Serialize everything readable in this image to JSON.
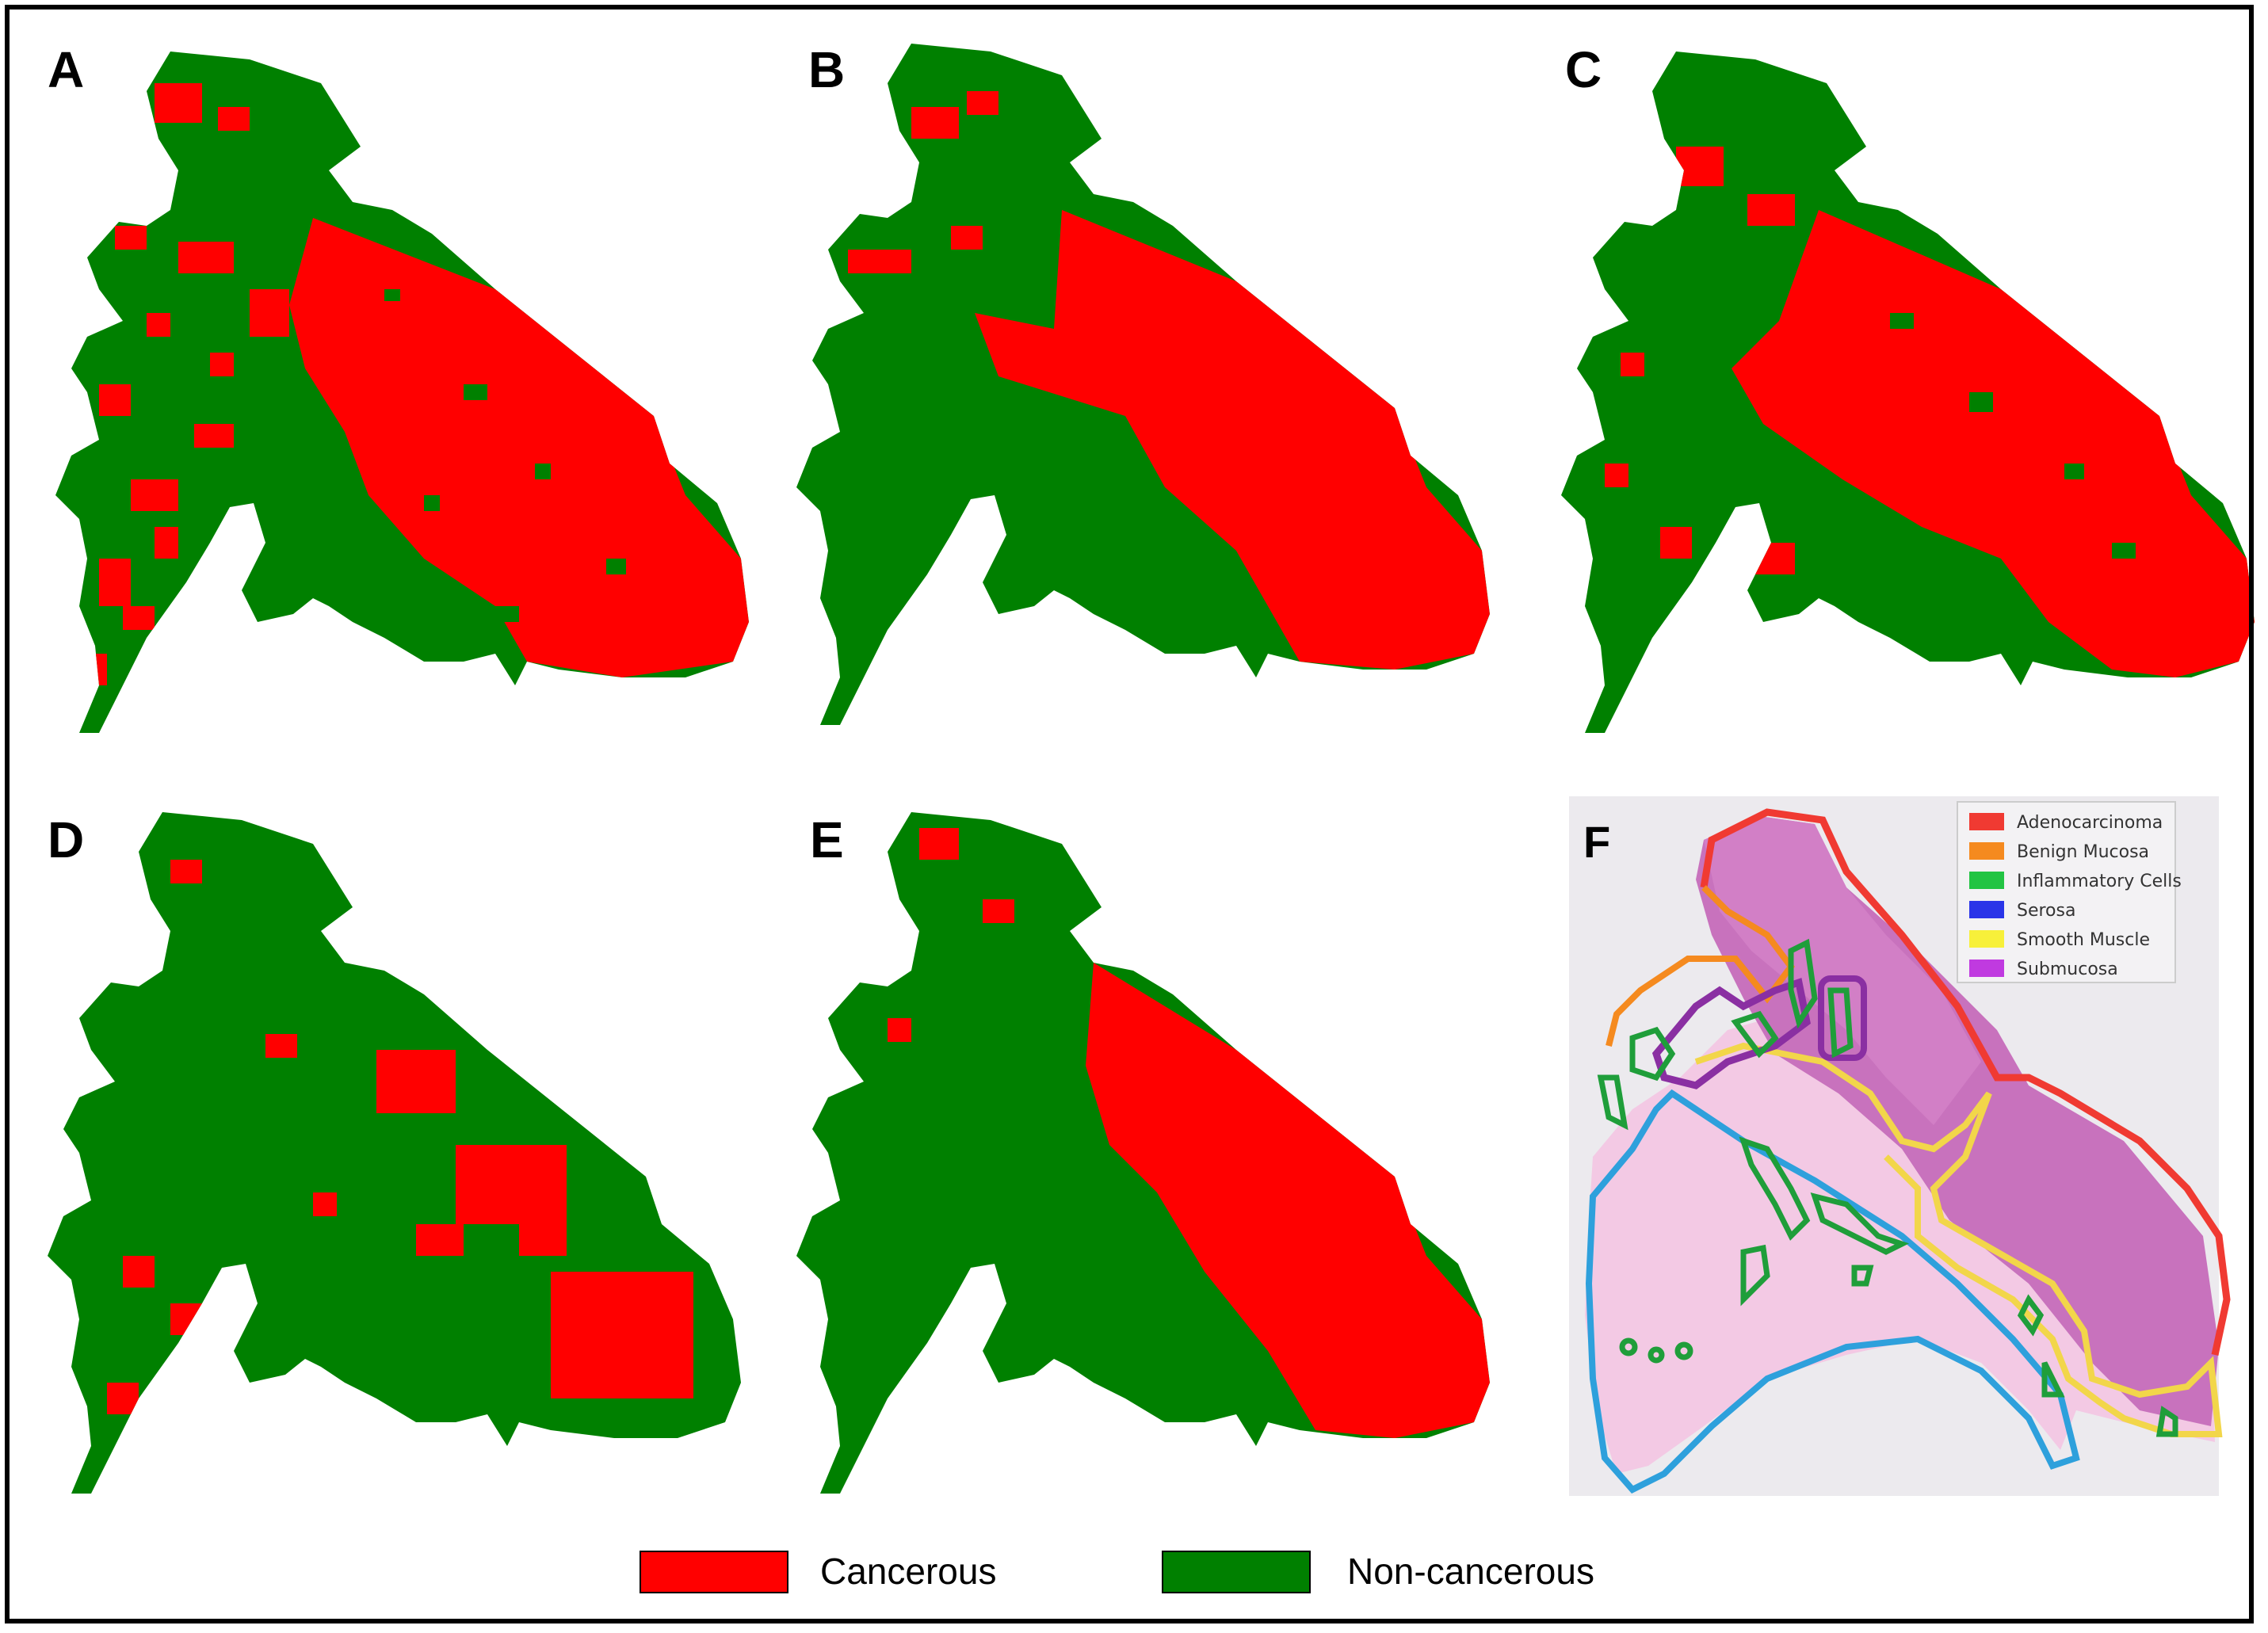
{
  "figure": {
    "panels": [
      {
        "letter": "A",
        "id": "a"
      },
      {
        "letter": "B",
        "id": "b"
      },
      {
        "letter": "C",
        "id": "c"
      },
      {
        "letter": "D",
        "id": "d"
      },
      {
        "letter": "E",
        "id": "e"
      },
      {
        "letter": "F",
        "id": "f"
      }
    ],
    "map_legend": [
      {
        "label": "Cancerous",
        "color": "#ff0000"
      },
      {
        "label": "Non-cancerous",
        "color": "#008000"
      }
    ],
    "annotation_legend": [
      {
        "label": "Adenocarcinoma",
        "color": "#f03a32"
      },
      {
        "label": "Benign Mucosa",
        "color": "#f58a1f"
      },
      {
        "label": "Inflammatory Cells",
        "color": "#22c443"
      },
      {
        "label": "Serosa",
        "color": "#2a35e8"
      },
      {
        "label": "Smooth Muscle",
        "color": "#f7f03a"
      },
      {
        "label": "Submucosa",
        "color": "#c03ae0"
      }
    ],
    "colors": {
      "cancerous": "#ff0000",
      "non_cancerous": "#008000",
      "tissue_pink": "#e48ec4",
      "tissue_purple": "#c872bd",
      "slide_bg": "#eceaee"
    }
  }
}
